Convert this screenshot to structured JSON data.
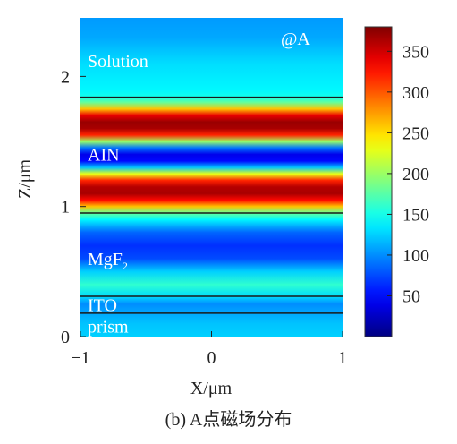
{
  "chart_data": {
    "type": "heatmap",
    "marker_label": "@A",
    "xlabel": "X/μm",
    "ylabel": "Z/μm",
    "xlim": [
      -1,
      1
    ],
    "ylim": [
      0,
      2.45
    ],
    "x_ticks": [
      -1,
      0,
      1
    ],
    "x_tick_labels": [
      "−1",
      "0",
      "1"
    ],
    "y_ticks": [
      0,
      1,
      2
    ],
    "y_tick_labels": [
      "0",
      "1",
      "2"
    ],
    "colorbar": {
      "range": [
        0,
        380
      ],
      "ticks": [
        50,
        100,
        150,
        200,
        250,
        300,
        350
      ],
      "tick_labels": [
        "50",
        "100",
        "150",
        "200",
        "250",
        "300",
        "350"
      ],
      "colormap": "jet"
    },
    "layer_boundaries_z": [
      0.18,
      0.31,
      0.95,
      1.84
    ],
    "layers": [
      {
        "name": "prism",
        "z_label": 0.08
      },
      {
        "name": "ITO",
        "z_label": 0.245
      },
      {
        "name": "MgF",
        "subscript": "2",
        "z_label": 0.6
      },
      {
        "name": "AIN",
        "z_label": 1.4
      },
      {
        "name": "Solution",
        "z_label": 2.12
      }
    ],
    "field_profile": {
      "z": [
        0.0,
        0.1,
        0.18,
        0.25,
        0.31,
        0.4,
        0.5,
        0.6,
        0.7,
        0.8,
        0.9,
        0.95,
        1.0,
        1.05,
        1.1,
        1.15,
        1.2,
        1.25,
        1.3,
        1.35,
        1.4,
        1.45,
        1.5,
        1.55,
        1.6,
        1.65,
        1.7,
        1.75,
        1.8,
        1.84,
        1.9,
        2.0,
        2.1,
        2.2,
        2.3,
        2.45
      ],
      "H": [
        125,
        120,
        110,
        100,
        130,
        160,
        125,
        75,
        65,
        85,
        140,
        180,
        260,
        330,
        365,
        360,
        320,
        230,
        120,
        50,
        40,
        90,
        200,
        320,
        365,
        370,
        340,
        260,
        180,
        150,
        140,
        135,
        130,
        120,
        110,
        105
      ]
    }
  },
  "caption": "(b) A点磁场分布"
}
